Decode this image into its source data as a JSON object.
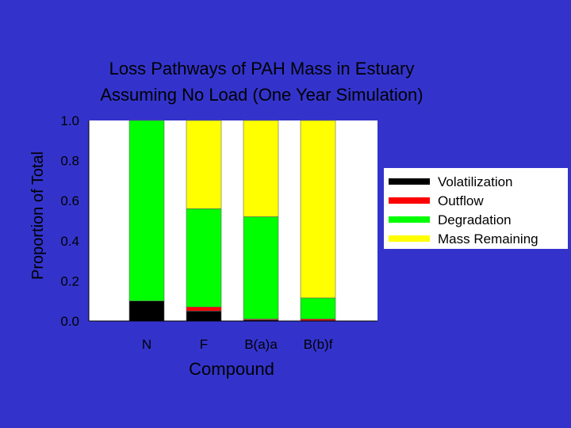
{
  "chart_data": {
    "type": "bar",
    "stacked": true,
    "title": [
      "Loss Pathways of PAH Mass in Estuary",
      "Assuming No Load (One Year Simulation)"
    ],
    "xlabel": "Compound",
    "ylabel": "Proportion of Total",
    "ylim": [
      0,
      1
    ],
    "yticks": [
      "0.0",
      "0.2",
      "0.4",
      "0.6",
      "0.8",
      "1.0"
    ],
    "categories": [
      "N",
      "F",
      "B(a)a",
      "B(b)f"
    ],
    "series": [
      {
        "name": "Volatilization",
        "color": "#000000",
        "values": [
          0.1,
          0.05,
          0.005,
          0.002
        ]
      },
      {
        "name": "Outflow",
        "color": "#ff0000",
        "values": [
          0.0,
          0.02,
          0.005,
          0.008
        ]
      },
      {
        "name": "Degradation",
        "color": "#00ff00",
        "values": [
          0.9,
          0.49,
          0.51,
          0.105
        ]
      },
      {
        "name": "Mass Remaining",
        "color": "#ffff00",
        "values": [
          0.0,
          0.44,
          0.48,
          0.885
        ]
      }
    ],
    "legend": "right",
    "grid": false,
    "plot_background": "#ffffff",
    "text_color": "#000000",
    "page_background": "#3333cc"
  }
}
